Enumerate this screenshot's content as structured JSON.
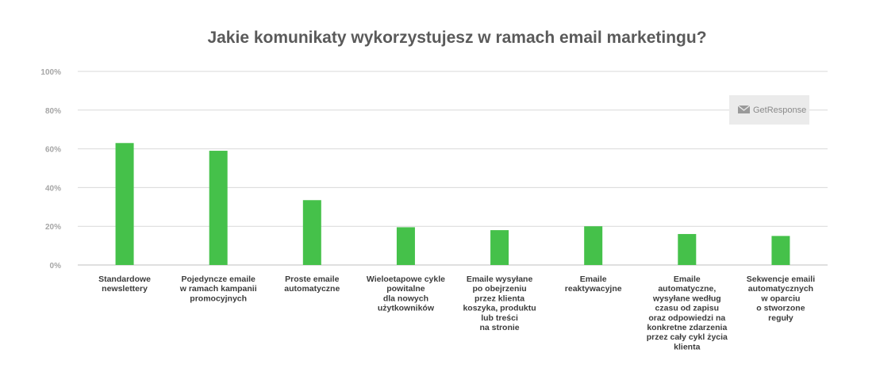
{
  "chart_data": {
    "type": "bar",
    "title": "Jakie komunikaty wykorzystujesz w ramach email marketingu?",
    "xlabel": "",
    "ylabel": "",
    "ylim": [
      0,
      100
    ],
    "yticks": [
      0,
      20,
      40,
      60,
      80,
      100
    ],
    "ytick_labels": [
      "0%",
      "20%",
      "40%",
      "60%",
      "80%",
      "100%"
    ],
    "grid": true,
    "legend": "none",
    "bar_color": "#45c14a",
    "categories": [
      [
        "Standardowe",
        "newslettery"
      ],
      [
        "Pojedyncze emaile",
        "w ramach kampanii",
        "promocyjnych"
      ],
      [
        "Proste emaile",
        "automatyczne"
      ],
      [
        "Wieloetapowe cykle",
        "powitalne",
        "dla nowych",
        "użytkowników"
      ],
      [
        "Emaile wysyłane",
        "po obejrzeniu",
        "przez klienta",
        "koszyka, produktu",
        "lub treści",
        "na stronie"
      ],
      [
        "Emaile",
        "reaktywacyjne"
      ],
      [
        "Emaile",
        "automatyczne,",
        "wysyłane według",
        "czasu od zapisu",
        "oraz odpowiedzi na",
        "konkretne zdarzenia",
        "przez cały cykl życia",
        "klienta"
      ],
      [
        "Sekwencje emaili",
        "automatycznych",
        "w oparciu",
        "o stworzone",
        "reguły"
      ]
    ],
    "values": [
      63,
      59,
      33.5,
      19.5,
      18,
      20,
      16,
      15
    ]
  },
  "brand": {
    "name": "GetResponse",
    "icon": "envelope-icon"
  }
}
